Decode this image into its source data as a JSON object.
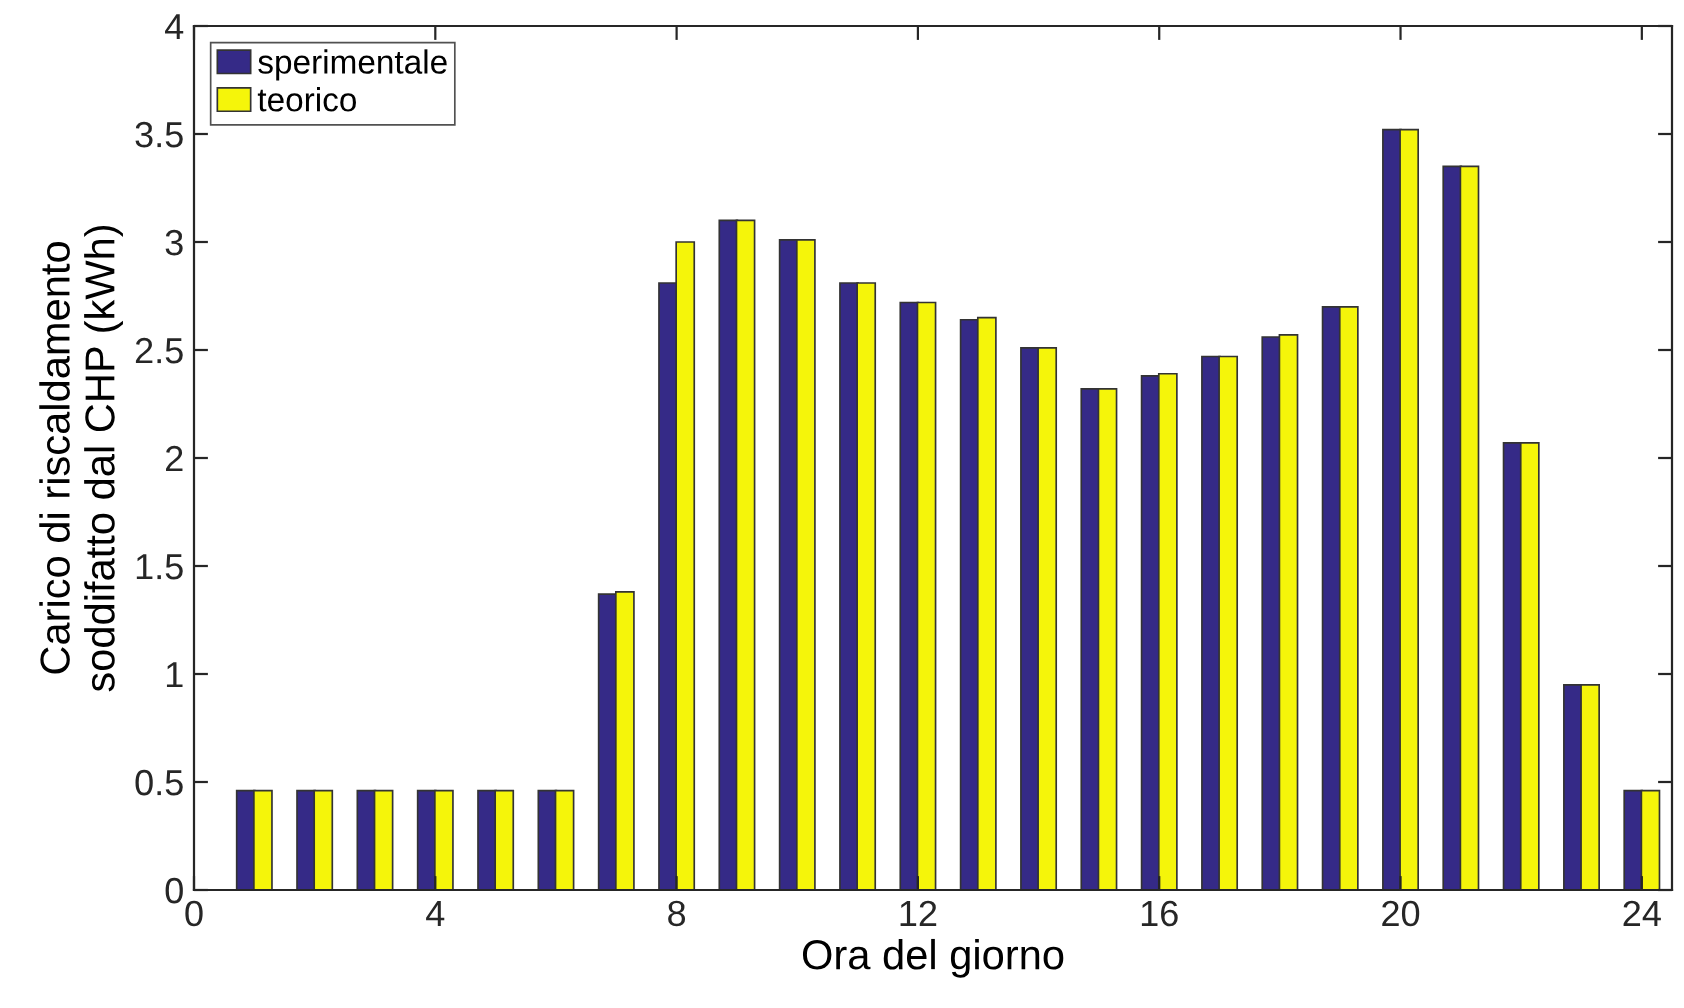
{
  "chart_data": {
    "type": "bar",
    "xlabel": "Ora del giorno",
    "ylabel": "Carico di riscaldamento\nsoddifatto dal CHP (kWh)",
    "x": [
      1,
      2,
      3,
      4,
      5,
      6,
      7,
      8,
      9,
      10,
      11,
      12,
      13,
      14,
      15,
      16,
      17,
      18,
      19,
      20,
      21,
      22,
      23,
      24
    ],
    "series": [
      {
        "name": "sperimentale",
        "color": "#352a87",
        "values": [
          0.46,
          0.46,
          0.46,
          0.46,
          0.46,
          0.46,
          1.37,
          2.81,
          3.1,
          3.01,
          2.81,
          2.72,
          2.64,
          2.51,
          2.32,
          2.38,
          2.47,
          2.56,
          2.7,
          3.52,
          3.35,
          2.07,
          0.95,
          0.46
        ]
      },
      {
        "name": "teorico",
        "color": "#f5f50a",
        "values": [
          0.46,
          0.46,
          0.46,
          0.46,
          0.46,
          0.46,
          1.38,
          3.0,
          3.1,
          3.01,
          2.81,
          2.72,
          2.65,
          2.51,
          2.32,
          2.39,
          2.47,
          2.57,
          2.7,
          3.52,
          3.35,
          2.07,
          0.95,
          0.46
        ]
      }
    ],
    "xlim": [
      0,
      24.5
    ],
    "xticks": [
      0,
      4,
      8,
      12,
      16,
      20,
      24
    ],
    "ylim": [
      0,
      4
    ],
    "yticks": [
      0,
      0.5,
      1,
      1.5,
      2,
      2.5,
      3,
      3.5,
      4
    ],
    "grid": false,
    "legend": "top left"
  }
}
